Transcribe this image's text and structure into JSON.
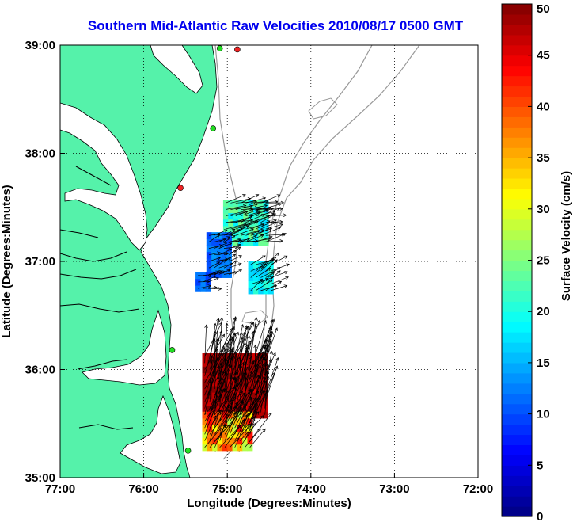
{
  "title": "Southern Mid-Atlantic Raw Velocities 2010/08/17 0500 GMT",
  "x_axis": {
    "label": "Longitude (Degrees:Minutes)",
    "range": [
      -77,
      -72
    ],
    "ticks": [
      {
        "value": -77,
        "label": "77:00"
      },
      {
        "value": -76,
        "label": "76:00"
      },
      {
        "value": -75,
        "label": "75:00"
      },
      {
        "value": -74,
        "label": "74:00"
      },
      {
        "value": -73,
        "label": "73:00"
      },
      {
        "value": -72,
        "label": "72:00"
      }
    ]
  },
  "y_axis": {
    "label": "Latitude (Degrees:Minutes)",
    "range": [
      35,
      39
    ],
    "ticks": [
      {
        "value": 35,
        "label": "35:00"
      },
      {
        "value": 36,
        "label": "36:00"
      },
      {
        "value": 37,
        "label": "37:00"
      },
      {
        "value": 38,
        "label": "38:00"
      },
      {
        "value": 39,
        "label": "39:00"
      }
    ]
  },
  "grid": "dotted",
  "colorbar": {
    "label": "Surface Velocity (cm/s)",
    "min": 0,
    "max": 50,
    "ticks": [
      0,
      5,
      10,
      15,
      20,
      25,
      30,
      35,
      40,
      45,
      50
    ],
    "tick_labels": [
      "0",
      "5",
      "10",
      "15",
      "20",
      "25",
      "30",
      "35",
      "40",
      "45",
      "50"
    ],
    "colormap": "jet",
    "steps": 50
  },
  "colors": {
    "land": "#55f2aa",
    "coastline": "#000000",
    "bathymetry": "#999999",
    "title": "#0000ee",
    "site_active": "#22dd22",
    "site_inactive": "#ee2222",
    "vector": "#000000"
  },
  "radar_sites": [
    {
      "lon": -75.09,
      "lat": 38.97,
      "status": "active"
    },
    {
      "lon": -74.88,
      "lat": 38.96,
      "status": "inactive"
    },
    {
      "lon": -75.17,
      "lat": 38.23,
      "status": "active"
    },
    {
      "lon": -75.56,
      "lat": 37.68,
      "status": "inactive"
    },
    {
      "lon": -75.66,
      "lat": 36.18,
      "status": "active"
    },
    {
      "lon": -75.47,
      "lat": 35.25,
      "status": "active"
    }
  ],
  "velocity_regions": [
    {
      "name": "northern patch",
      "lon": [
        -75.05,
        -74.55
      ],
      "lat": [
        37.15,
        37.55
      ],
      "speed_range": [
        17,
        25
      ],
      "dir_deg": 75
    },
    {
      "name": "nearshore blue patch",
      "lon": [
        -75.25,
        -74.95
      ],
      "lat": [
        36.85,
        37.25
      ],
      "speed_range": [
        9,
        14
      ],
      "dir_deg": 70
    },
    {
      "name": "southern blue patch",
      "lon": [
        -75.38,
        -75.2
      ],
      "lat": [
        36.72,
        36.85
      ],
      "speed_range": [
        9,
        13
      ],
      "dir_deg": 80
    },
    {
      "name": "eastern patch",
      "lon": [
        -74.75,
        -74.5
      ],
      "lat": [
        36.7,
        36.95
      ],
      "speed_range": [
        16,
        21
      ],
      "dir_deg": 60
    },
    {
      "name": "high speed core",
      "lon": [
        -75.3,
        -74.55
      ],
      "lat": [
        35.55,
        36.1
      ],
      "speed_range": [
        45,
        50
      ],
      "dir_deg": 15
    },
    {
      "name": "southern tip",
      "lon": [
        -75.3,
        -74.75
      ],
      "lat": [
        35.25,
        35.6
      ],
      "speed_range": [
        27,
        44
      ],
      "dir_deg": 30
    }
  ]
}
